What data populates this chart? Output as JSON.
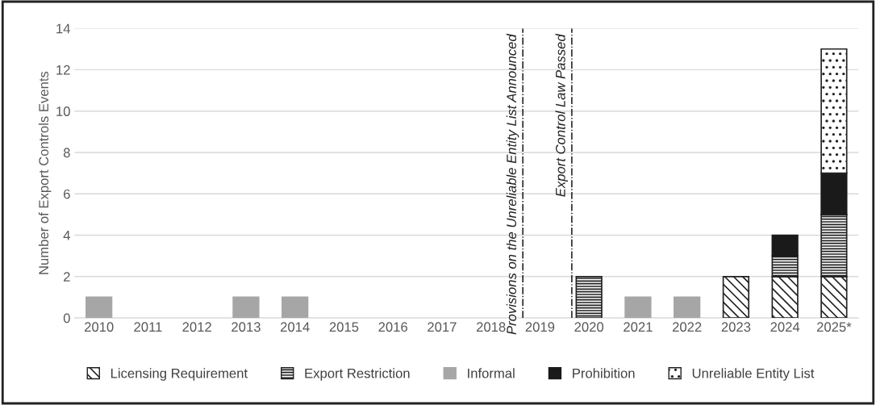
{
  "chart_data": {
    "type": "bar",
    "stacked": true,
    "ylabel": "Number of Export Controls Events",
    "categories": [
      "2010",
      "2011",
      "2012",
      "2013",
      "2014",
      "2015",
      "2016",
      "2017",
      "2018",
      "2019",
      "2020",
      "2021",
      "2022",
      "2023",
      "2024",
      "2025*"
    ],
    "series": [
      {
        "name": "Licensing Requirement",
        "color": "#222222",
        "values": [
          0,
          0,
          0,
          0,
          0,
          0,
          0,
          0,
          0,
          0,
          0,
          0,
          0,
          2,
          2,
          2
        ]
      },
      {
        "name": "Export Restriction",
        "color": "#222222",
        "values": [
          0,
          0,
          0,
          0,
          0,
          0,
          0,
          0,
          0,
          0,
          2,
          0,
          0,
          0,
          1,
          3
        ]
      },
      {
        "name": "Informal",
        "color": "#a6a6a6",
        "values": [
          1,
          0,
          0,
          1,
          1,
          0,
          0,
          0,
          0,
          0,
          0,
          1,
          1,
          0,
          0,
          0
        ]
      },
      {
        "name": "Prohibition",
        "color": "#1a1a1a",
        "values": [
          0,
          0,
          0,
          0,
          0,
          0,
          0,
          0,
          0,
          0,
          0,
          0,
          0,
          0,
          1,
          2
        ]
      },
      {
        "name": "Unreliable Entity List",
        "color": "#222222",
        "values": [
          0,
          0,
          0,
          0,
          0,
          0,
          0,
          0,
          0,
          0,
          0,
          0,
          0,
          0,
          0,
          6
        ]
      }
    ],
    "ylim": [
      0,
      14
    ],
    "yticks": [
      0,
      2,
      4,
      6,
      8,
      10,
      12,
      14
    ],
    "grid": "y",
    "legend": "bottom",
    "ref_lines": [
      {
        "axis": "x",
        "value": "2019",
        "label": "Provisions on the Unreliable Entity List Announced",
        "line_style": "dashdot",
        "color": "#000000"
      },
      {
        "axis": "x",
        "value": "2020",
        "label": "Export Control Law Passed",
        "line_style": "dashdot",
        "color": "#000000"
      }
    ]
  }
}
